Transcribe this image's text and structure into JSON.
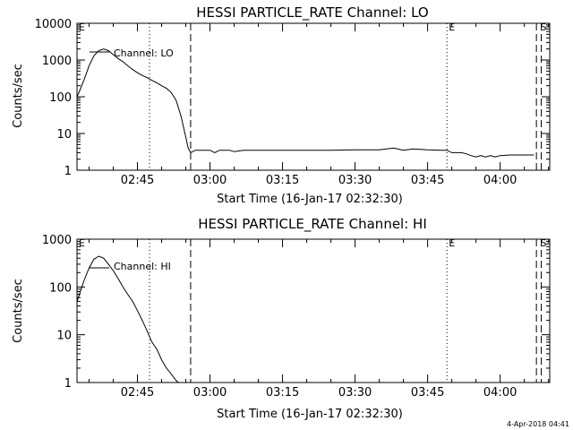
{
  "footer": {
    "timestamp": "4-Apr-2018 04:41"
  },
  "chart_data": [
    {
      "type": "line",
      "title": "HESSI PARTICLE_RATE Channel: LO",
      "xlabel": "Start Time (16-Jan-17 02:32:30)",
      "ylabel": "Counts/sec",
      "y_scale": "log",
      "ylim": [
        1,
        10000
      ],
      "xlim": [
        "02:32:30",
        "04:10:15"
      ],
      "x_ticks": [
        "02:45",
        "03:00",
        "03:15",
        "03:30",
        "03:45",
        "04:00"
      ],
      "y_ticks": [
        "1",
        "10",
        "100",
        "1000",
        "10000"
      ],
      "legend": {
        "label": "Channel: LO",
        "placement": "top-left"
      },
      "markers": [
        {
          "label": "E",
          "time": "02:32:30"
        },
        {
          "label": "S",
          "time": "04:08:30"
        },
        {
          "label": "E",
          "time": "03:49:00"
        }
      ],
      "vlines": [
        {
          "time": "02:47:30",
          "style": "dotted"
        },
        {
          "time": "02:56:00",
          "style": "dashed"
        },
        {
          "time": "03:49:00",
          "style": "dotted"
        },
        {
          "time": "04:07:30",
          "style": "dashed"
        },
        {
          "time": "04:08:30",
          "style": "dashed"
        }
      ],
      "series": [
        {
          "name": "Channel: LO",
          "segments": [
            [
              [
                "02:32:30",
                100
              ],
              [
                "02:33:00",
                140
              ],
              [
                "02:34:00",
                300
              ],
              [
                "02:35:00",
                700
              ],
              [
                "02:36:00",
                1300
              ],
              [
                "02:37:00",
                1800
              ],
              [
                "02:38:00",
                2000
              ],
              [
                "02:39:00",
                1800
              ],
              [
                "02:40:00",
                1400
              ],
              [
                "02:41:00",
                1100
              ],
              [
                "02:42:00",
                900
              ],
              [
                "02:43:00",
                700
              ],
              [
                "02:44:00",
                550
              ],
              [
                "02:45:00",
                450
              ],
              [
                "02:46:00",
                380
              ],
              [
                "02:47:00",
                330
              ],
              [
                "02:48:00",
                280
              ],
              [
                "02:49:00",
                240
              ],
              [
                "02:50:00",
                200
              ],
              [
                "02:51:00",
                170
              ],
              [
                "02:52:00",
                130
              ],
              [
                "02:53:00",
                80
              ],
              [
                "02:54:00",
                30
              ],
              [
                "02:55:00",
                8
              ],
              [
                "02:55:30",
                4
              ],
              [
                "02:56:00",
                3
              ],
              [
                "02:57:00",
                3.5
              ],
              [
                "02:58:00",
                3.5
              ],
              [
                "03:00:00",
                3.5
              ],
              [
                "03:01:00",
                3
              ],
              [
                "03:02:00",
                3.5
              ],
              [
                "03:04:00",
                3.5
              ],
              [
                "03:05:00",
                3.2
              ],
              [
                "03:07:00",
                3.5
              ],
              [
                "03:10:00",
                3.5
              ],
              [
                "03:15:00",
                3.5
              ],
              [
                "03:20:00",
                3.5
              ],
              [
                "03:25:00",
                3.5
              ],
              [
                "03:30:00",
                3.6
              ],
              [
                "03:35:00",
                3.6
              ],
              [
                "03:38:00",
                4
              ],
              [
                "03:40:00",
                3.5
              ],
              [
                "03:42:00",
                3.8
              ],
              [
                "03:45:00",
                3.6
              ],
              [
                "03:48:00",
                3.5
              ],
              [
                "03:49:00",
                3.5
              ],
              [
                "03:50:00",
                3
              ],
              [
                "03:52:00",
                3
              ],
              [
                "03:53:00",
                2.8
              ],
              [
                "03:54:00",
                2.5
              ],
              [
                "03:55:00",
                2.3
              ],
              [
                "03:56:00",
                2.5
              ],
              [
                "03:57:00",
                2.3
              ],
              [
                "03:58:00",
                2.5
              ],
              [
                "03:59:00",
                2.3
              ],
              [
                "04:00:00",
                2.5
              ],
              [
                "04:02:00",
                2.6
              ],
              [
                "04:05:00",
                2.6
              ],
              [
                "04:07:00",
                2.6
              ]
            ]
          ]
        }
      ]
    },
    {
      "type": "line",
      "title": "HESSI PARTICLE_RATE Channel: HI",
      "xlabel": "Start Time (16-Jan-17 02:32:30)",
      "ylabel": "Counts/sec",
      "y_scale": "log",
      "ylim": [
        1,
        1000
      ],
      "xlim": [
        "02:32:30",
        "04:10:15"
      ],
      "x_ticks": [
        "02:45",
        "03:00",
        "03:15",
        "03:30",
        "03:45",
        "04:00"
      ],
      "y_ticks": [
        "1",
        "10",
        "100",
        "1000"
      ],
      "legend": {
        "label": "Channel: HI",
        "placement": "top-left"
      },
      "markers": [
        {
          "label": "E",
          "time": "02:32:30"
        },
        {
          "label": "S",
          "time": "04:08:30"
        },
        {
          "label": "E",
          "time": "03:49:00"
        }
      ],
      "vlines": [
        {
          "time": "02:47:30",
          "style": "dotted"
        },
        {
          "time": "02:56:00",
          "style": "dashed"
        },
        {
          "time": "03:49:00",
          "style": "dotted"
        },
        {
          "time": "04:07:30",
          "style": "dashed"
        },
        {
          "time": "04:08:30",
          "style": "dashed"
        }
      ],
      "series": [
        {
          "name": "Channel: HI",
          "segments": [
            [
              [
                "02:32:30",
                50
              ],
              [
                "02:33:00",
                70
              ],
              [
                "02:34:00",
                140
              ],
              [
                "02:35:00",
                250
              ],
              [
                "02:36:00",
                380
              ],
              [
                "02:37:00",
                440
              ],
              [
                "02:38:00",
                400
              ],
              [
                "02:39:00",
                300
              ],
              [
                "02:40:00",
                220
              ],
              [
                "02:41:00",
                150
              ],
              [
                "02:42:00",
                100
              ],
              [
                "02:43:00",
                70
              ],
              [
                "02:44:00",
                50
              ],
              [
                "02:45:00",
                32
              ],
              [
                "02:46:00",
                20
              ],
              [
                "02:47:00",
                12
              ],
              [
                "02:48:00",
                7
              ],
              [
                "02:49:00",
                5
              ],
              [
                "02:50:00",
                3
              ],
              [
                "02:51:00",
                2
              ],
              [
                "02:52:00",
                1.5
              ],
              [
                "02:53:00",
                1.1
              ],
              [
                "02:53:30",
                1.0
              ]
            ]
          ]
        }
      ]
    }
  ]
}
